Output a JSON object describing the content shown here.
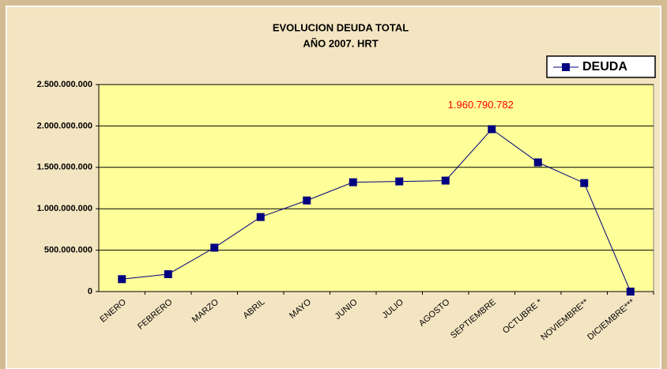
{
  "chart_data": {
    "type": "line",
    "title": [
      "EVOLUCION DEUDA TOTAL",
      "AÑO 2007. HRT"
    ],
    "categories": [
      "ENERO",
      "FEBRERO",
      "MARZO",
      "ABRIL",
      "MAYO",
      "JUNIO",
      "JULIO",
      "AGOSTO",
      "SEPTIEMBRE",
      "OCTUBRE *",
      "NOVIEMBRE**",
      "DICIEMBRE***"
    ],
    "series": [
      {
        "name": "DEUDA",
        "color": "#000080",
        "values": [
          150000000,
          210000000,
          530000000,
          900000000,
          1100000000,
          1320000000,
          1330000000,
          1340000000,
          1960790782,
          1560000000,
          1310000000,
          0
        ],
        "value_labels": [
          null,
          null,
          null,
          null,
          null,
          null,
          null,
          null,
          "1.960.790.782",
          null,
          null,
          null
        ]
      }
    ],
    "ylim": [
      0,
      2500000000
    ],
    "yticks": [
      0,
      {
        "value": 500000000,
        "label": "500.000.000"
      },
      {
        "value": 1000000000,
        "label": "1.000.000.000"
      },
      {
        "value": 1500000000,
        "label": "1.500.000.000"
      },
      {
        "value": 2000000000,
        "label": "2.000.000.000"
      },
      {
        "value": 2500000000,
        "label": "2.500.000.000"
      }
    ],
    "grid": true,
    "legend": "top-right"
  }
}
